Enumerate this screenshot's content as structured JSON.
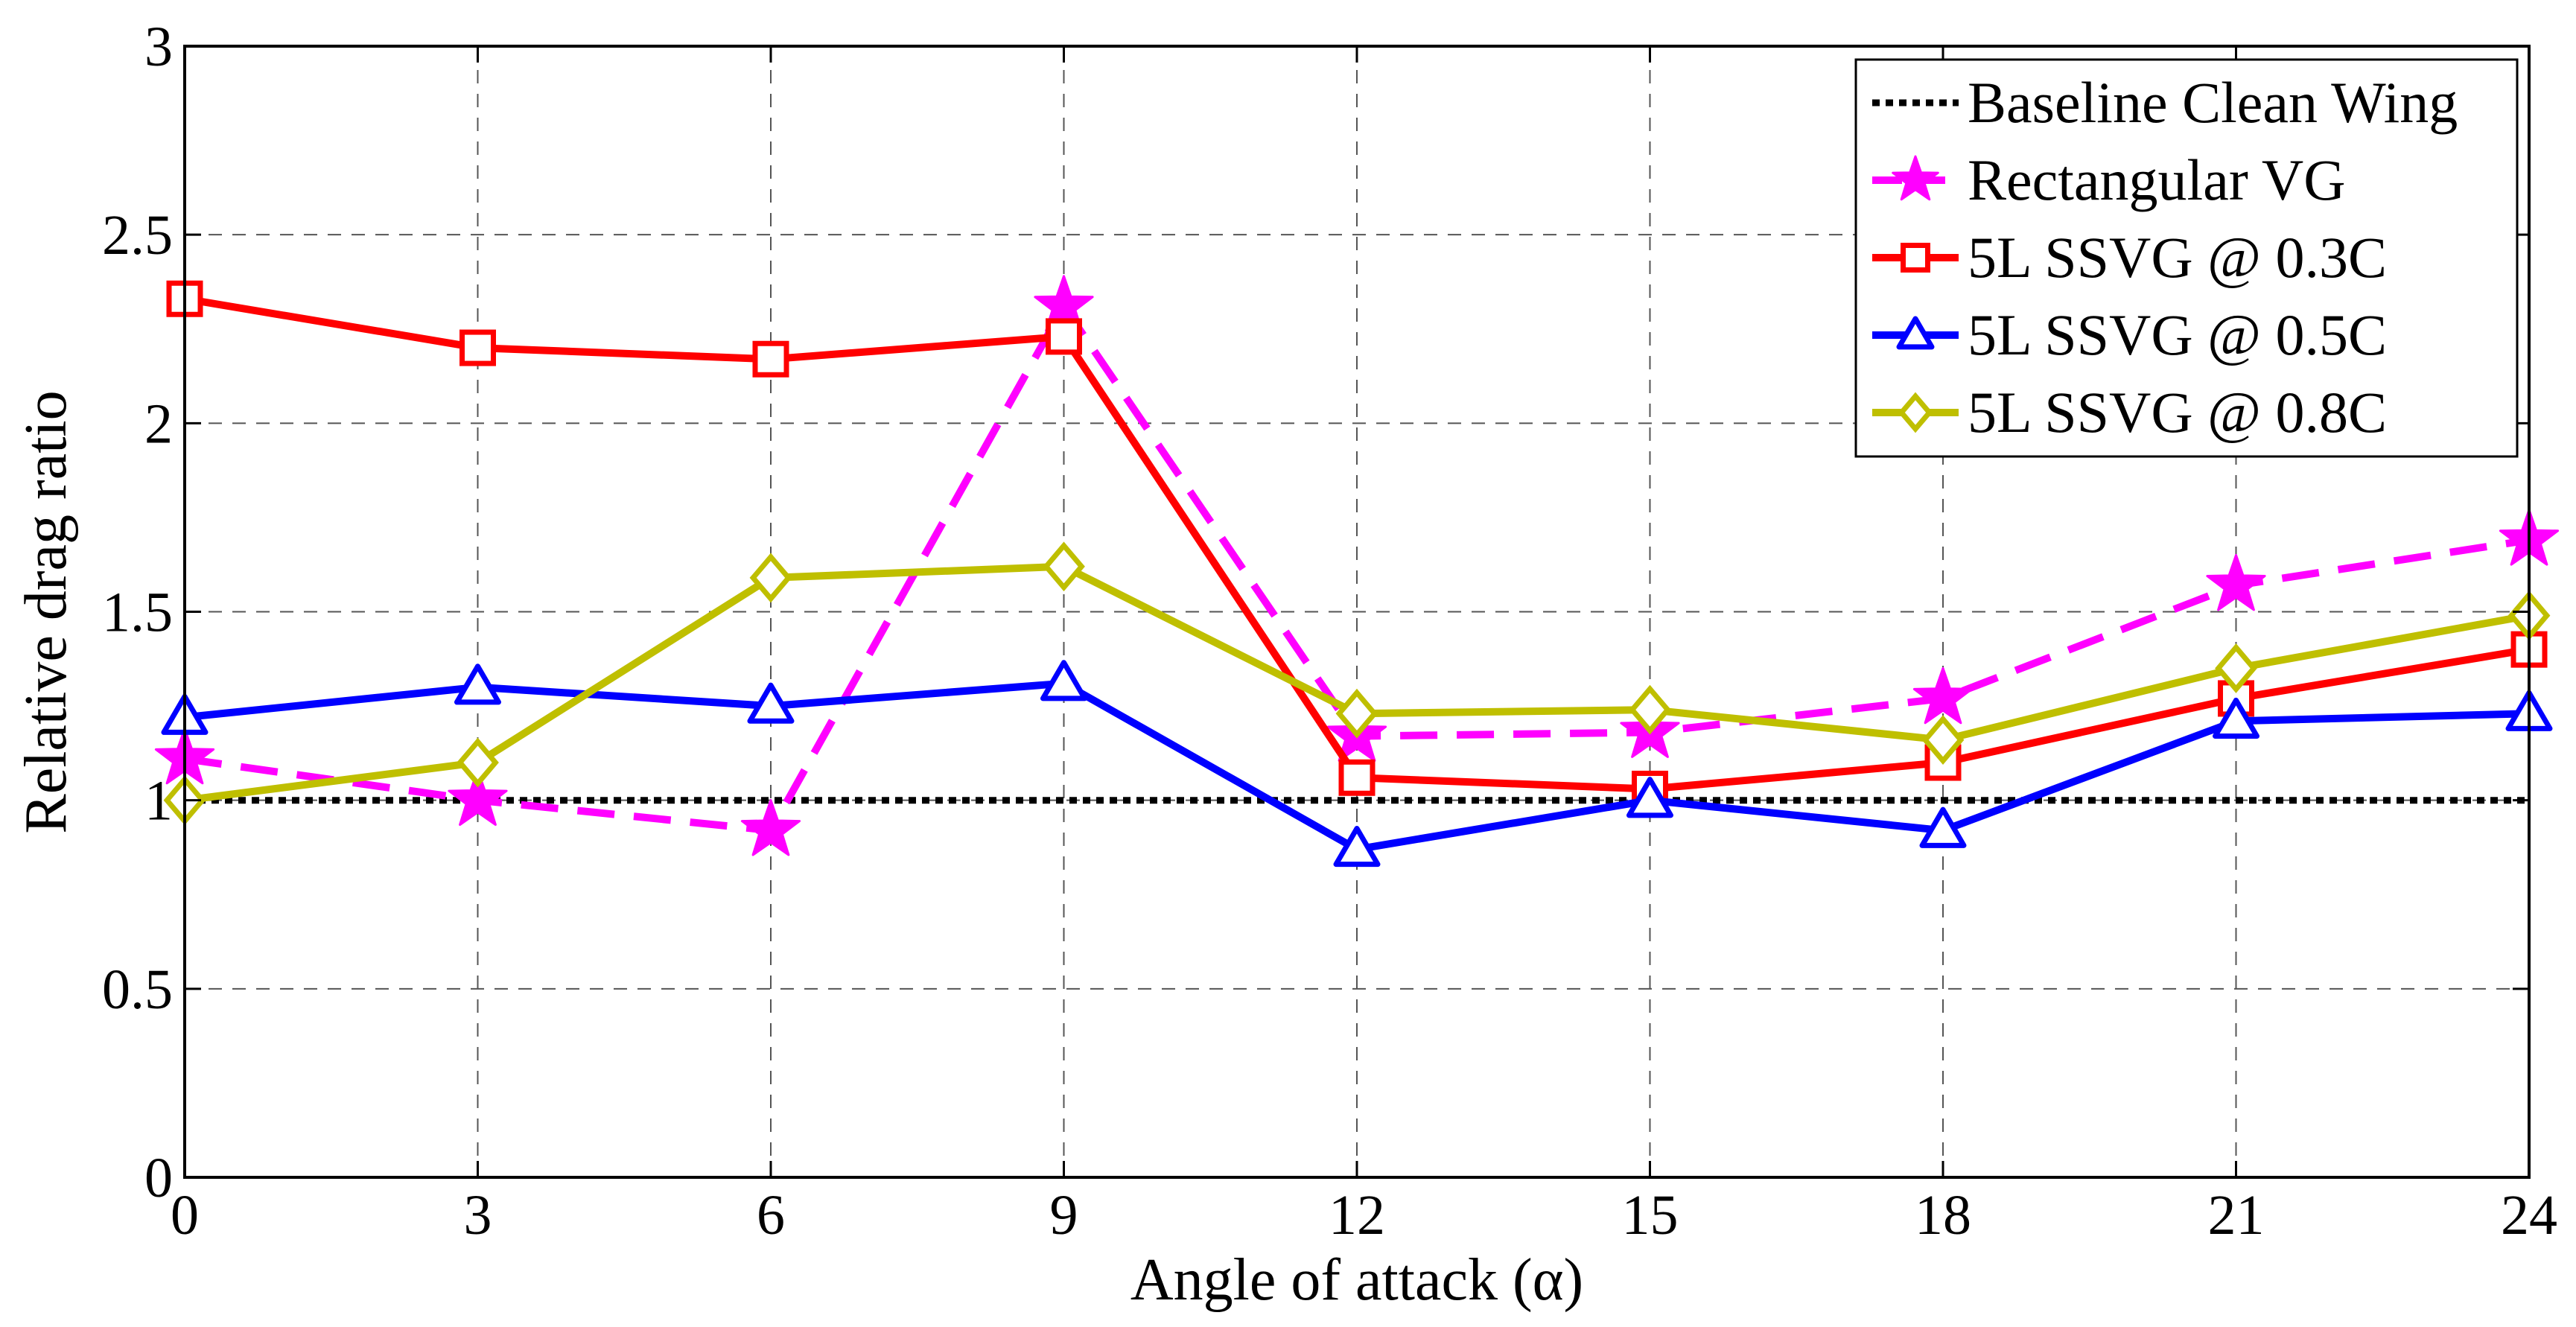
{
  "chart_data": {
    "type": "line",
    "xlabel": "Angle of attack (α)",
    "ylabel": "Relative drag ratio",
    "xlim": [
      0,
      24
    ],
    "ylim": [
      0,
      3
    ],
    "xticks": [
      "0",
      "3",
      "6",
      "9",
      "12",
      "15",
      "18",
      "21",
      "24"
    ],
    "yticks": [
      "0",
      "0.5",
      "1",
      "1.5",
      "2",
      "2.5",
      "3"
    ],
    "grid": true,
    "legend_position": "top-right",
    "series": [
      {
        "name": "Baseline Clean Wing",
        "color": "#000000",
        "line_style": "dotted",
        "marker": "none",
        "x": [
          0,
          24
        ],
        "values": [
          1.0,
          1.0
        ]
      },
      {
        "name": "Rectangular VG",
        "color": "#ff00ff",
        "line_style": "dashed",
        "marker": "star",
        "x": [
          0,
          3,
          6,
          9,
          12,
          15,
          18,
          21,
          24
        ],
        "values": [
          1.11,
          1.0,
          0.92,
          2.31,
          1.17,
          1.18,
          1.27,
          1.57,
          1.69
        ]
      },
      {
        "name": "5L SSVG @ 0.3C",
        "color": "#ff0000",
        "line_style": "solid",
        "marker": "square",
        "x": [
          0,
          3,
          6,
          9,
          12,
          15,
          18,
          21,
          24
        ],
        "values": [
          2.33,
          2.2,
          2.17,
          2.23,
          1.06,
          1.03,
          1.1,
          1.27,
          1.4
        ]
      },
      {
        "name": "5L SSVG @ 0.5C",
        "color": "#0000ff",
        "line_style": "solid",
        "marker": "triangle",
        "x": [
          0,
          3,
          6,
          9,
          12,
          15,
          18,
          21,
          24
        ],
        "values": [
          1.22,
          1.3,
          1.25,
          1.31,
          0.87,
          1.0,
          0.92,
          1.21,
          1.23
        ]
      },
      {
        "name": "5L SSVG @ 0.8C",
        "color": "#bfbf00",
        "line_style": "solid",
        "marker": "diamond",
        "x": [
          0,
          3,
          6,
          9,
          12,
          15,
          18,
          21,
          24
        ],
        "values": [
          1.0,
          1.1,
          1.59,
          1.62,
          1.23,
          1.24,
          1.16,
          1.35,
          1.49
        ]
      }
    ]
  }
}
